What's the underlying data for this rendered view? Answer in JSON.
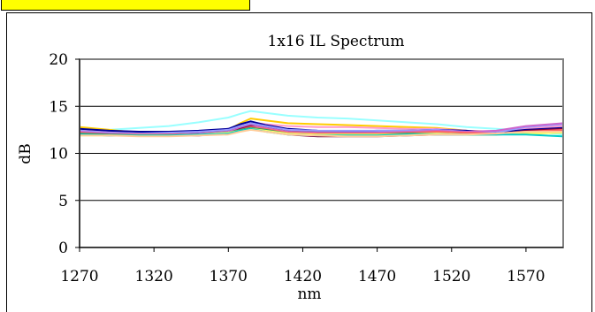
{
  "chart_data": {
    "type": "line",
    "title": "1x16 IL Spectrum",
    "xlabel": "nm",
    "ylabel": "dB",
    "xlim": [
      1270,
      1595
    ],
    "ylim": [
      0,
      20
    ],
    "x_ticks": [
      1270,
      1320,
      1370,
      1420,
      1470,
      1520,
      1570
    ],
    "y_ticks": [
      0,
      5,
      10,
      15,
      20
    ],
    "grid": "horizontal",
    "legend": "none",
    "x": [
      1270,
      1290,
      1310,
      1330,
      1350,
      1370,
      1378,
      1385,
      1395,
      1410,
      1430,
      1450,
      1470,
      1490,
      1510,
      1530,
      1550,
      1570,
      1595
    ],
    "series": [
      {
        "color": "#99ffff",
        "values": [
          12.3,
          12.5,
          12.7,
          12.9,
          13.3,
          13.8,
          14.2,
          14.5,
          14.3,
          14.0,
          13.8,
          13.7,
          13.5,
          13.3,
          13.1,
          12.8,
          12.6,
          12.4,
          12.0
        ]
      },
      {
        "color": "#ffcc00",
        "values": [
          12.8,
          12.5,
          12.2,
          12.1,
          12.2,
          12.5,
          13.2,
          13.7,
          13.5,
          13.2,
          13.1,
          13.0,
          12.9,
          12.8,
          12.7,
          12.4,
          12.3,
          12.5,
          12.6
        ]
      },
      {
        "color": "#ff99cc",
        "values": [
          12.5,
          12.3,
          12.2,
          12.2,
          12.3,
          12.6,
          13.0,
          13.3,
          13.1,
          12.9,
          12.8,
          12.8,
          12.7,
          12.6,
          12.6,
          12.4,
          12.3,
          12.6,
          12.9
        ]
      },
      {
        "color": "#000099",
        "values": [
          12.6,
          12.4,
          12.3,
          12.3,
          12.4,
          12.6,
          13.1,
          13.4,
          13.0,
          12.6,
          12.4,
          12.3,
          12.4,
          12.4,
          12.5,
          12.4,
          12.2,
          12.5,
          12.7
        ]
      },
      {
        "color": "#333333",
        "values": [
          12.2,
          12.1,
          12.0,
          12.1,
          12.2,
          12.4,
          12.9,
          13.1,
          12.8,
          12.4,
          12.3,
          12.2,
          12.2,
          12.2,
          12.3,
          12.2,
          12.1,
          12.3,
          12.4
        ]
      },
      {
        "color": "#9999ff",
        "values": [
          12.4,
          12.2,
          12.1,
          12.2,
          12.3,
          12.5,
          12.9,
          13.2,
          12.9,
          12.5,
          12.4,
          12.4,
          12.4,
          12.4,
          12.5,
          12.3,
          12.2,
          12.8,
          13.1
        ]
      },
      {
        "color": "#cc66cc",
        "values": [
          12.3,
          12.1,
          12.0,
          12.0,
          12.1,
          12.3,
          12.7,
          13.0,
          12.7,
          12.3,
          12.2,
          12.2,
          12.2,
          12.3,
          12.4,
          12.3,
          12.4,
          12.9,
          13.2
        ]
      },
      {
        "color": "#800040",
        "values": [
          12.0,
          11.9,
          11.9,
          11.9,
          11.9,
          12.1,
          12.6,
          12.9,
          12.4,
          12.0,
          11.8,
          11.8,
          11.8,
          11.9,
          12.0,
          12.0,
          12.0,
          12.4,
          12.6
        ]
      },
      {
        "color": "#ff6666",
        "values": [
          12.2,
          12.0,
          12.0,
          12.0,
          12.0,
          12.2,
          12.5,
          12.8,
          12.6,
          12.2,
          12.1,
          12.1,
          12.1,
          12.2,
          12.3,
          12.2,
          12.1,
          12.3,
          12.5
        ]
      },
      {
        "color": "#339966",
        "values": [
          12.1,
          12.0,
          11.9,
          11.9,
          12.0,
          12.2,
          12.5,
          12.7,
          12.5,
          12.1,
          12.0,
          12.0,
          12.0,
          12.1,
          12.1,
          12.0,
          12.0,
          12.1,
          12.2
        ]
      },
      {
        "color": "#ffff66",
        "values": [
          11.9,
          11.9,
          11.9,
          11.9,
          12.0,
          12.2,
          12.4,
          12.6,
          12.4,
          12.1,
          12.0,
          12.0,
          12.0,
          12.0,
          12.1,
          12.0,
          12.0,
          12.1,
          12.2
        ]
      },
      {
        "color": "#00cccc",
        "values": [
          12.0,
          11.9,
          11.9,
          11.9,
          12.0,
          12.1,
          12.4,
          12.6,
          12.3,
          12.0,
          11.9,
          11.9,
          11.9,
          12.0,
          12.0,
          12.0,
          12.0,
          12.0,
          11.8
        ]
      },
      {
        "color": "#ffcc99",
        "values": [
          11.9,
          11.9,
          11.8,
          11.8,
          11.9,
          12.0,
          12.3,
          12.5,
          12.3,
          12.0,
          11.9,
          11.8,
          11.8,
          11.9,
          12.0,
          12.0,
          12.1,
          12.3,
          12.3
        ]
      }
    ]
  }
}
